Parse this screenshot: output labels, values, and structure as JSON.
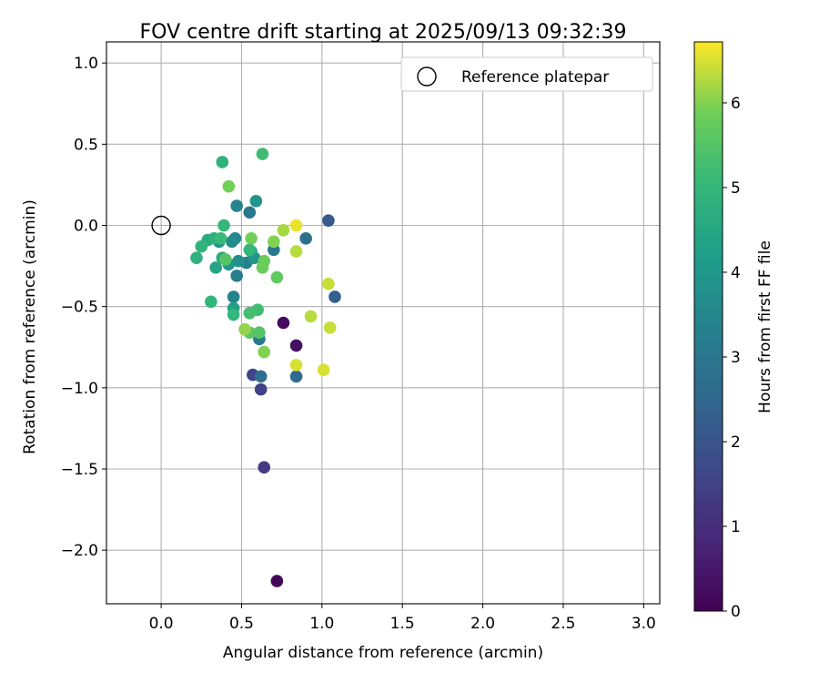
{
  "chart_data": {
    "type": "scatter",
    "title": "FOV centre drift starting at 2025/09/13 09:32:39",
    "xlabel": "Angular distance from reference (arcmin)",
    "ylabel": "Rotation from reference (arcmin)",
    "xlim": [
      -0.34,
      3.1
    ],
    "ylim": [
      -2.33,
      1.13
    ],
    "xticks": [
      0.0,
      0.5,
      1.0,
      1.5,
      2.0,
      2.5,
      3.0
    ],
    "xtick_labels": [
      "0.0",
      "0.5",
      "1.0",
      "1.5",
      "2.0",
      "2.5",
      "3.0"
    ],
    "yticks": [
      1.0,
      0.5,
      0.0,
      -0.5,
      -1.0,
      -1.5,
      -2.0
    ],
    "ytick_labels": [
      "1.0",
      "0.5",
      "0.0",
      "−0.5",
      "−1.0",
      "−1.5",
      "−2.0"
    ],
    "grid": true,
    "legend": {
      "position": "top-right",
      "label": "Reference platepar"
    },
    "reference_point": {
      "x": 0.0,
      "y": 0.0
    },
    "colorbar": {
      "label": "Hours from first FF file",
      "range": [
        0,
        6.72
      ],
      "ticks": [
        0,
        1,
        2,
        3,
        4,
        5,
        6
      ],
      "tick_labels": [
        "0",
        "1",
        "2",
        "3",
        "4",
        "5",
        "6"
      ],
      "colormap": "viridis"
    },
    "points": [
      {
        "x": 0.72,
        "y": -2.19,
        "t": 0.1
      },
      {
        "x": 0.76,
        "y": -0.6,
        "t": 0.2
      },
      {
        "x": 0.84,
        "y": -0.74,
        "t": 0.3
      },
      {
        "x": 0.64,
        "y": -1.49,
        "t": 1.3
      },
      {
        "x": 0.62,
        "y": -1.01,
        "t": 1.5
      },
      {
        "x": 0.57,
        "y": -0.92,
        "t": 1.6
      },
      {
        "x": 1.04,
        "y": 0.03,
        "t": 2.1
      },
      {
        "x": 1.08,
        "y": -0.44,
        "t": 2.3
      },
      {
        "x": 0.84,
        "y": -0.93,
        "t": 2.6
      },
      {
        "x": 0.62,
        "y": -0.93,
        "t": 2.7
      },
      {
        "x": 0.9,
        "y": -0.08,
        "t": 2.8
      },
      {
        "x": 0.55,
        "y": 0.08,
        "t": 3.0
      },
      {
        "x": 0.7,
        "y": -0.15,
        "t": 3.0
      },
      {
        "x": 0.61,
        "y": -0.7,
        "t": 3.1
      },
      {
        "x": 0.47,
        "y": -0.31,
        "t": 3.2
      },
      {
        "x": 0.53,
        "y": -0.23,
        "t": 3.3
      },
      {
        "x": 0.45,
        "y": -0.44,
        "t": 3.4
      },
      {
        "x": 0.47,
        "y": 0.12,
        "t": 3.4
      },
      {
        "x": 0.46,
        "y": -0.08,
        "t": 3.5
      },
      {
        "x": 0.44,
        "y": -0.1,
        "t": 3.7
      },
      {
        "x": 0.36,
        "y": -0.1,
        "t": 3.8
      },
      {
        "x": 0.59,
        "y": 0.15,
        "t": 3.9
      },
      {
        "x": 0.58,
        "y": -0.2,
        "t": 3.9
      },
      {
        "x": 0.48,
        "y": -0.22,
        "t": 3.8
      },
      {
        "x": 0.42,
        "y": -0.24,
        "t": 4.0
      },
      {
        "x": 0.56,
        "y": -0.16,
        "t": 4.2
      },
      {
        "x": 0.45,
        "y": -0.51,
        "t": 4.3
      },
      {
        "x": 0.34,
        "y": -0.26,
        "t": 4.4
      },
      {
        "x": 0.29,
        "y": -0.09,
        "t": 4.6
      },
      {
        "x": 0.38,
        "y": -0.2,
        "t": 4.6
      },
      {
        "x": 0.33,
        "y": -0.08,
        "t": 4.8
      },
      {
        "x": 0.22,
        "y": -0.2,
        "t": 4.8
      },
      {
        "x": 0.25,
        "y": -0.13,
        "t": 4.9
      },
      {
        "x": 0.38,
        "y": 0.39,
        "t": 4.9
      },
      {
        "x": 0.39,
        "y": 0.0,
        "t": 5.0
      },
      {
        "x": 0.31,
        "y": -0.47,
        "t": 5.0
      },
      {
        "x": 0.45,
        "y": -0.55,
        "t": 5.0
      },
      {
        "x": 0.55,
        "y": -0.15,
        "t": 5.0
      },
      {
        "x": 0.37,
        "y": -0.08,
        "t": 5.1
      },
      {
        "x": 0.63,
        "y": 0.44,
        "t": 5.2
      },
      {
        "x": 0.6,
        "y": -0.52,
        "t": 5.2
      },
      {
        "x": 0.55,
        "y": -0.54,
        "t": 5.3
      },
      {
        "x": 0.4,
        "y": -0.21,
        "t": 5.5
      },
      {
        "x": 0.61,
        "y": -0.66,
        "t": 5.5
      },
      {
        "x": 0.55,
        "y": -0.66,
        "t": 5.6
      },
      {
        "x": 0.72,
        "y": -0.32,
        "t": 5.7
      },
      {
        "x": 0.64,
        "y": -0.22,
        "t": 5.8
      },
      {
        "x": 0.63,
        "y": -0.26,
        "t": 5.8
      },
      {
        "x": 0.42,
        "y": 0.24,
        "t": 5.9
      },
      {
        "x": 0.56,
        "y": -0.08,
        "t": 5.9
      },
      {
        "x": 0.7,
        "y": -0.1,
        "t": 6.0
      },
      {
        "x": 0.64,
        "y": -0.78,
        "t": 6.0
      },
      {
        "x": 0.52,
        "y": -0.64,
        "t": 6.1
      },
      {
        "x": 0.76,
        "y": -0.03,
        "t": 6.2
      },
      {
        "x": 0.93,
        "y": -0.56,
        "t": 6.3
      },
      {
        "x": 0.84,
        "y": -0.16,
        "t": 6.3
      },
      {
        "x": 1.04,
        "y": -0.36,
        "t": 6.4
      },
      {
        "x": 1.05,
        "y": -0.63,
        "t": 6.4
      },
      {
        "x": 0.84,
        "y": -0.86,
        "t": 6.5
      },
      {
        "x": 1.01,
        "y": -0.89,
        "t": 6.5
      },
      {
        "x": 0.84,
        "y": 0.0,
        "t": 6.6
      }
    ]
  }
}
